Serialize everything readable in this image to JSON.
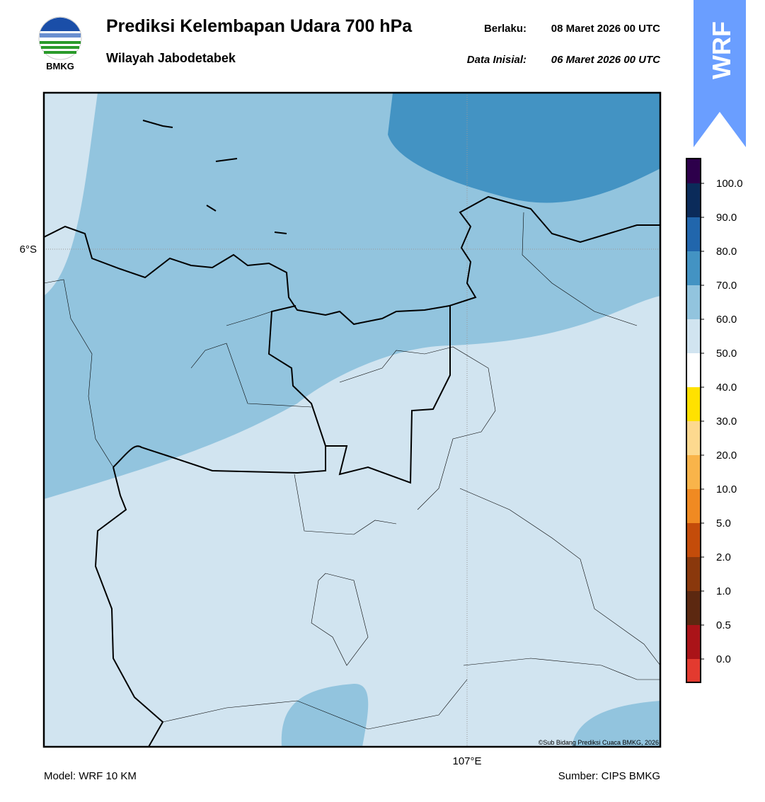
{
  "header": {
    "title": "Prediksi Kelembapan Udara 700 hPa",
    "subtitle": "Wilayah Jabodetabek",
    "valid_label": "Berlaku:",
    "valid_time": "08 Maret 2026 00 UTC",
    "initial_label": "Data Inisial:",
    "initial_time": "06 Maret 2026 00 UTC",
    "logo_text": "BMKG",
    "badge": "WRF"
  },
  "map": {
    "lat_label": "6°S",
    "lon_label": "107°E",
    "credit": "©Sub Bidang Prediksi Cuaca BMKG, 2026"
  },
  "colorbar": {
    "labels": [
      "0.0",
      "0.5",
      "1.0",
      "2.0",
      "5.0",
      "10.0",
      "20.0",
      "30.0",
      "40.0",
      "50.0",
      "60.0",
      "70.0",
      "80.0",
      "90.0",
      "100.0"
    ],
    "colors": [
      "#e33a2f",
      "#aa1318",
      "#5c2810",
      "#8a380c",
      "#c44c0a",
      "#f08a22",
      "#f9b44a",
      "#fdd98f",
      "#ffe100",
      "#ffffff",
      "#d1e4f0",
      "#92c4de",
      "#4393c3",
      "#2166ac",
      "#0b2b5a",
      "#2d004b"
    ]
  },
  "footer": {
    "model": "Model: WRF 10 KM",
    "source": "Sumber: CIPS BMKG"
  }
}
